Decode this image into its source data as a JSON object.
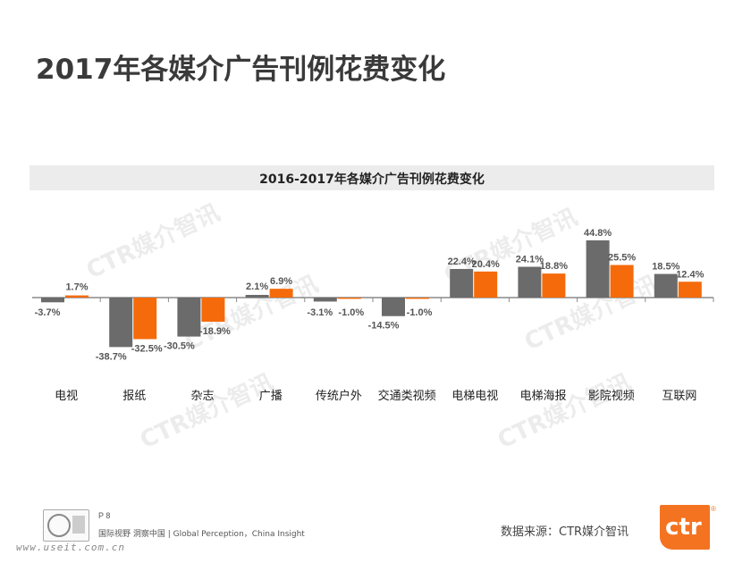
{
  "page": {
    "title": "2017年各媒介广告刊例花费变化",
    "source": "数据来源：CTR媒介智讯",
    "page_number": "P 8",
    "footer_slogan": "国际视野  洞察中国 |  Global Perception，China Insight",
    "url_watermark": "www.useit.com.cn",
    "watermark_text": "CTR媒介智讯",
    "logo_text": "ctr"
  },
  "colors": {
    "series_2016": "#6b6b6b",
    "series_2017": "#f56a0a",
    "title_band": "#ececec",
    "brand": "#f47321"
  },
  "chart_data": {
    "type": "bar",
    "title": "2016-2017年各媒介广告刊例花费变化",
    "xlabel": "",
    "ylabel": "",
    "categories": [
      "电视",
      "报纸",
      "杂志",
      "广播",
      "传统户外",
      "交通类视频",
      "电梯电视",
      "电梯海报",
      "影院视频",
      "互联网"
    ],
    "series": [
      {
        "key": "2016",
        "values": [
          -3.7,
          -38.7,
          -30.5,
          2.1,
          -3.1,
          -14.5,
          22.4,
          24.1,
          44.8,
          18.5
        ],
        "labels": [
          "-3.7%",
          "-38.7%",
          "-30.5%",
          "2.1%",
          "-3.1%",
          "-14.5%",
          "22.4%",
          "24.1%",
          "44.8%",
          "18.5%"
        ]
      },
      {
        "key": "2017",
        "values": [
          1.7,
          -32.5,
          -18.9,
          6.9,
          -1.0,
          -1.0,
          20.4,
          18.8,
          25.5,
          12.4
        ],
        "labels": [
          "1.7%",
          "-32.5%",
          "-18.9%",
          "6.9%",
          "-1.0%",
          "-1.0%",
          "20.4%",
          "18.8%",
          "25.5%",
          "12.4%"
        ]
      }
    ],
    "grid": false,
    "legend": "none"
  }
}
